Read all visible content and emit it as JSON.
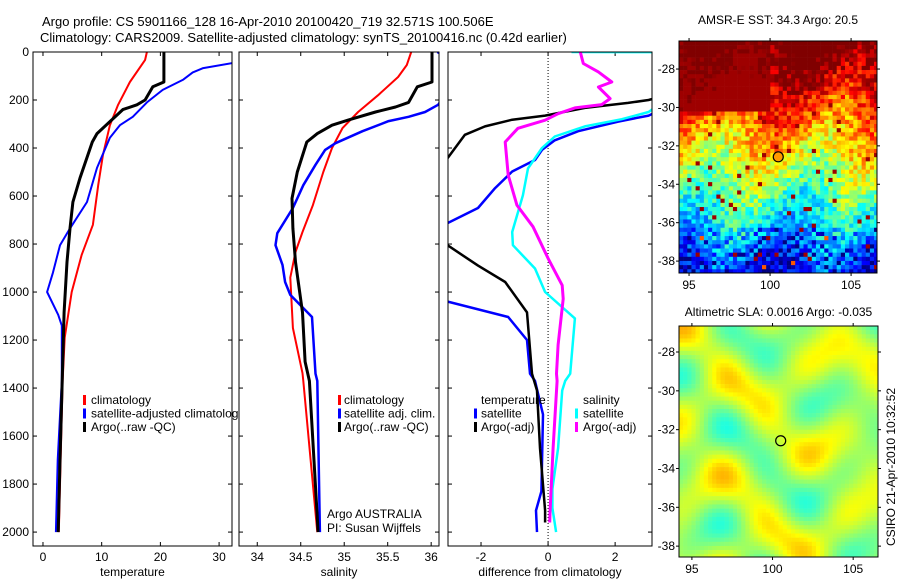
{
  "figure": {
    "title_line1": "Argo profile: CS 5901166_128 16-Apr-2010 20100420_719 32.571S 100.506E",
    "title_line2": "Climatology: CARS2009. Satellite-adjusted climatology: synTS_20100416.nc (0.42d earlier)",
    "credit": "CSIRO 21-Apr-2010 10:32:52",
    "argo_note": [
      "Argo AUSTRALIA",
      "PI: Susan Wijffels"
    ]
  },
  "chart_data": [
    {
      "type": "line",
      "id": "temperature",
      "xlabel": "temperature",
      "ylabel": "",
      "xlim": [
        -1.7,
        32.2
      ],
      "ylim": [
        0,
        2058
      ],
      "y_reversed": true,
      "xticks": [
        0,
        10,
        20,
        30
      ],
      "yticks": [
        0,
        200,
        400,
        600,
        800,
        1000,
        1200,
        1400,
        1600,
        1800,
        2000
      ],
      "show_ytick_labels": true,
      "legend": {
        "placement": "lower-middle",
        "headers": []
      },
      "series": [
        {
          "name": "climatology",
          "label": "climatology",
          "color": "#ff0000",
          "width": 2,
          "depth": [
            0,
            33,
            125,
            220,
            305,
            430,
            555,
            720,
            845,
            1000,
            1190,
            1370,
            1700,
            2000
          ],
          "value": [
            17.7,
            17.4,
            14.8,
            12.8,
            11.4,
            10.2,
            9.4,
            8.5,
            6.6,
            4.9,
            3.7,
            3.35,
            3.0,
            2.7
          ]
        },
        {
          "name": "satellite-adjusted",
          "label": "satellite-adjusted climatology",
          "color": "#0000ff",
          "width": 2,
          "depth": [
            0,
            45,
            67,
            85,
            115,
            158,
            210,
            270,
            305,
            357,
            483,
            625,
            735,
            805,
            918,
            1000,
            1095,
            1140,
            1370,
            1700,
            2000
          ],
          "value": [
            33.5,
            32.5,
            27.3,
            25.5,
            23.9,
            20.4,
            17.7,
            15.3,
            13.1,
            11.4,
            9.2,
            7.5,
            4.6,
            2.9,
            1.7,
            0.7,
            2.6,
            3.2,
            3.2,
            2.5,
            2.2
          ]
        },
        {
          "name": "argo",
          "label": "Argo(..raw -QC)",
          "color": "#000000",
          "width": 3,
          "depth": [
            0,
            125,
            145,
            200,
            220,
            240,
            290,
            340,
            375,
            525,
            625,
            735,
            875,
            1085,
            1340,
            1700,
            2000
          ],
          "value": [
            20.6,
            20.6,
            18.7,
            17.4,
            16.0,
            13.6,
            11.4,
            9.2,
            8.4,
            6.3,
            5.1,
            4.6,
            4.1,
            3.6,
            3.3,
            2.9,
            2.6
          ]
        }
      ]
    },
    {
      "type": "line",
      "id": "salinity",
      "xlabel": "salinity",
      "ylabel": "",
      "xlim": [
        33.79,
        36.09
      ],
      "ylim": [
        0,
        2058
      ],
      "y_reversed": true,
      "xticks": [
        34,
        34.5,
        35,
        35.5,
        36
      ],
      "yticks": [
        0,
        200,
        400,
        600,
        800,
        1000,
        1200,
        1400,
        1600,
        1800,
        2000
      ],
      "show_ytick_labels": false,
      "legend": {
        "placement": "lower-middle",
        "headers": []
      },
      "series": [
        {
          "name": "climatology",
          "label": "climatology",
          "color": "#ff0000",
          "width": 2,
          "depth": [
            0,
            54,
            104,
            180,
            250,
            317,
            400,
            500,
            638,
            750,
            833,
            940,
            1150,
            1338,
            1370,
            2000
          ],
          "value": [
            35.77,
            35.72,
            35.62,
            35.39,
            35.16,
            34.98,
            34.86,
            34.76,
            34.64,
            34.52,
            34.44,
            34.38,
            34.41,
            34.52,
            34.53,
            34.69
          ]
        },
        {
          "name": "satellite-adjusted",
          "label": "satellite adj. clim.",
          "color": "#0000ff",
          "width": 2.5,
          "depth": [
            0,
            60,
            220,
            250,
            270,
            288,
            330,
            380,
            408,
            470,
            555,
            650,
            755,
            805,
            887,
            958,
            1012,
            1104,
            1340,
            1370,
            2000
          ],
          "value": [
            36.07,
            36.4,
            36.08,
            35.93,
            35.74,
            35.51,
            35.21,
            34.9,
            34.78,
            34.67,
            34.53,
            34.41,
            34.23,
            34.21,
            34.29,
            34.32,
            34.38,
            34.63,
            34.67,
            34.69,
            34.72
          ]
        },
        {
          "name": "argo",
          "label": "Argo(..raw -QC)",
          "color": "#000000",
          "width": 3,
          "depth": [
            0,
            125,
            145,
            210,
            229,
            250,
            283,
            305,
            340,
            375,
            500,
            610,
            735,
            875,
            1085,
            1290,
            1370,
            1940,
            2000
          ],
          "value": [
            36.01,
            36.01,
            35.84,
            35.74,
            35.59,
            35.36,
            35.05,
            34.86,
            34.69,
            34.57,
            34.46,
            34.4,
            34.41,
            34.44,
            34.52,
            34.55,
            34.6,
            34.69,
            34.7
          ]
        }
      ]
    },
    {
      "type": "line",
      "id": "difference",
      "xlabel": "difference from climatology",
      "ylabel": "",
      "xlim": [
        -2.985,
        3.1
      ],
      "ylim": [
        0,
        2058
      ],
      "y_reversed": true,
      "xticks": [
        -2,
        0,
        2
      ],
      "yticks": [
        0,
        200,
        400,
        600,
        800,
        1000,
        1200,
        1400,
        1600,
        1800,
        2000
      ],
      "show_ytick_labels": false,
      "zero_line": true,
      "legend": {
        "placement": "lower-middle",
        "headers": [
          "temperature",
          "salinity"
        ]
      },
      "series": [
        {
          "name": "temperature-satellite",
          "group": "temperature",
          "label": "satellite",
          "color": "#0000ff",
          "width": 2.5,
          "depth": [
            0,
            200,
            265,
            290,
            330,
            368,
            408,
            450,
            498,
            567,
            650,
            713,
            760,
            1000,
            1040,
            1104,
            1200,
            1340,
            1370,
            1510,
            1830,
            1910,
            2000
          ],
          "value": [
            6,
            4,
            3.0,
            2.09,
            0.9,
            0.2,
            -0.18,
            -0.39,
            -1.07,
            -1.58,
            -2.09,
            -3.0,
            -4,
            -4,
            -3.0,
            -1.19,
            -0.63,
            -0.54,
            -0.39,
            -0.15,
            -0.2,
            -0.36,
            -0.33
          ]
        },
        {
          "name": "temperature-argo",
          "group": "temperature",
          "label": "Argo(-adj)",
          "color": "#000000",
          "width": 2.5,
          "depth": [
            0,
            125,
            200,
            212,
            233,
            265,
            282,
            310,
            345,
            443,
            480,
            760,
            805,
            890,
            958,
            1085,
            1340,
            1410,
            1650,
            1910,
            1960
          ],
          "value": [
            6,
            5,
            3.0,
            2.39,
            1.1,
            -0.09,
            -1.07,
            -1.88,
            -2.48,
            -3.0,
            -4,
            -4,
            -3.0,
            -2.09,
            -1.28,
            -0.63,
            -0.48,
            -0.33,
            -0.24,
            -0.09,
            -0.09
          ]
        },
        {
          "name": "salinity-satellite",
          "group": "salinity",
          "label": "satellite",
          "color": "#00ffff",
          "width": 2.5,
          "depth": [
            0,
            1,
            150,
            250,
            280,
            310,
            352,
            400,
            485,
            597,
            750,
            805,
            902,
            1000,
            1110,
            1340,
            1370,
            1410,
            1650,
            1820,
            1900,
            2000
          ],
          "value": [
            0.7,
            3.6,
            4,
            3.0,
            2.2,
            1.1,
            0.2,
            -0.18,
            -0.6,
            -0.75,
            -1.07,
            -1.05,
            -0.39,
            -0.09,
            0.8,
            0.66,
            0.51,
            0.42,
            0.3,
            0.13,
            0.13,
            0.24
          ]
        },
        {
          "name": "salinity-argo",
          "group": "salinity",
          "label": "Argo(-adj)",
          "color": "#ff00ff",
          "width": 3,
          "depth": [
            0,
            48,
            83,
            125,
            146,
            194,
            219,
            233,
            257,
            284,
            318,
            375,
            513,
            638,
            728,
            860,
            972,
            1028,
            1220,
            1340,
            1370,
            1650,
            1910,
            1960
          ],
          "value": [
            0.96,
            1.05,
            1.5,
            1.9,
            1.5,
            1.85,
            1.6,
            0.8,
            0.3,
            -0.09,
            -0.9,
            -1.28,
            -1.19,
            -0.93,
            -0.45,
            0,
            0.42,
            0.45,
            0.3,
            0.25,
            0.27,
            0.15,
            0.06,
            0.05
          ]
        }
      ]
    },
    {
      "type": "heatmap",
      "id": "sst-map",
      "title": "AMSR-E SST: 34.3 Argo: 20.5",
      "xlim": [
        94.38,
        106.6
      ],
      "ylim": [
        -26.54,
        -38.62
      ],
      "xticks": [
        95,
        100,
        105
      ],
      "yticks": [
        -28,
        -30,
        -32,
        -34,
        -36,
        -38
      ],
      "marker": {
        "lon": 100.506,
        "lat": -32.571,
        "fill": "#ff9900"
      },
      "colormap": "jet"
    },
    {
      "type": "heatmap",
      "id": "sla-map",
      "title": "Altimetric SLA: 0.0016 Argo: -0.035",
      "xlim": [
        94.2,
        106.54
      ],
      "ylim": [
        -26.66,
        -38.56
      ],
      "xticks": [
        95,
        100,
        105
      ],
      "yticks": [
        -28,
        -30,
        -32,
        -34,
        -36,
        -38
      ],
      "marker": {
        "lon": 100.506,
        "lat": -32.571,
        "fill": "none"
      },
      "colormap": "jet"
    }
  ]
}
